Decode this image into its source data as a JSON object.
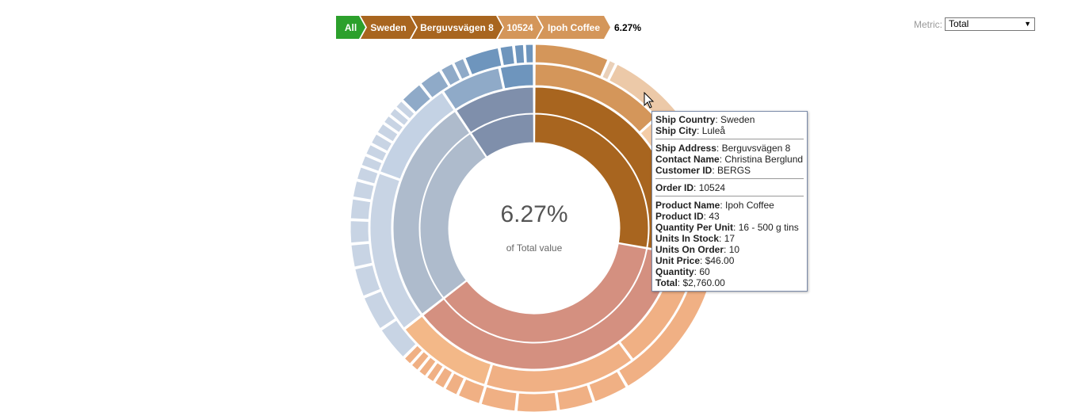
{
  "breadcrumb": {
    "items": [
      {
        "label": "All",
        "color": "#2ca02c"
      },
      {
        "label": "Sweden",
        "color": "#a8651f"
      },
      {
        "label": "Berguvsvägen 8",
        "color": "#a8651f"
      },
      {
        "label": "10524",
        "color": "#d4965a"
      },
      {
        "label": "Ipoh Coffee",
        "color": "#d4965a"
      }
    ],
    "percentage": "6.27%"
  },
  "metric": {
    "label": "Metric:",
    "selected": "Total"
  },
  "center": {
    "percentage": "6.27%",
    "caption": "of Total value"
  },
  "tooltip": {
    "groups": [
      [
        {
          "key": "Ship Country",
          "value": "Sweden"
        },
        {
          "key": "Ship City",
          "value": "Luleå"
        }
      ],
      [
        {
          "key": "Ship Address",
          "value": "Berguvsvägen 8"
        },
        {
          "key": "Contact Name",
          "value": "Christina Berglund"
        },
        {
          "key": "Customer ID",
          "value": "BERGS"
        }
      ],
      [
        {
          "key": "Order ID",
          "value": "10524"
        }
      ],
      [
        {
          "key": "Product Name",
          "value": "Ipoh Coffee"
        },
        {
          "key": "Product ID",
          "value": "43"
        },
        {
          "key": "Quantity Per Unit",
          "value": "16 - 500 g tins"
        },
        {
          "key": "Units In Stock",
          "value": "17"
        },
        {
          "key": "Units On Order",
          "value": "10"
        },
        {
          "key": "Unit Price",
          "value": "$46.00"
        },
        {
          "key": "Quantity",
          "value": "60"
        },
        {
          "key": "Total",
          "value": "$2,760.00"
        }
      ]
    ]
  },
  "chart_data": {
    "type": "sunburst",
    "highlighted_share_percent": 6.27,
    "levels": [
      "Ship Country",
      "Ship Address",
      "Order ID",
      "Product Name"
    ],
    "rings": [
      {
        "level": "Ship Country",
        "segments": [
          {
            "share": 0.278,
            "color": "#a8651f"
          },
          {
            "share": 0.367,
            "color": "#d49080"
          },
          {
            "share": 0.261,
            "color": "#aebbcc"
          },
          {
            "share": 0.094,
            "color": "#7f8fab"
          }
        ]
      },
      {
        "level": "Ship Address",
        "segments": [
          {
            "share": 0.278,
            "color": "#a8651f"
          },
          {
            "share": 0.367,
            "color": "#d49080"
          },
          {
            "share": 0.261,
            "color": "#aebbcc"
          },
          {
            "share": 0.094,
            "color": "#7f8fab"
          }
        ]
      },
      {
        "level": "Order ID",
        "segments": [
          {
            "share": 0.133,
            "color": "#d4965a"
          },
          {
            "share": 0.145,
            "color": "#f4cca6"
          },
          {
            "share": 0.12,
            "color": "#f0b084"
          },
          {
            "share": 0.15,
            "color": "#f0b084"
          },
          {
            "share": 0.097,
            "color": "#f3b888"
          },
          {
            "share": 0.16,
            "color": "#c8d4e4"
          },
          {
            "share": 0.101,
            "color": "#c4d2e4"
          },
          {
            "share": 0.06,
            "color": "#8faac8"
          },
          {
            "share": 0.034,
            "color": "#6e95bd"
          }
        ]
      },
      {
        "level": "Product Name",
        "segments": [
          {
            "share": 0.063,
            "color": "#d4965a"
          },
          {
            "share": 0.007,
            "color": "#ead0b8"
          },
          {
            "share": 0.068,
            "color": "#ecc9a8"
          },
          {
            "share": 0.02,
            "color": "#f4cca6"
          },
          {
            "share": 0.016,
            "color": "#f6d4b4"
          },
          {
            "share": 0.014,
            "color": "#f6d4b4"
          },
          {
            "share": 0.012,
            "color": "#f6d4b4"
          },
          {
            "share": 0.015,
            "color": "#f6d4b4"
          },
          {
            "share": 0.013,
            "color": "#f6d4b4"
          },
          {
            "share": 0.011,
            "color": "#f6d4b4"
          },
          {
            "share": 0.01,
            "color": "#f6d4b4"
          },
          {
            "share": 0.03,
            "color": "#f4cca6"
          },
          {
            "share": 0.115,
            "color": "#f0b084"
          },
          {
            "share": 0.03,
            "color": "#f0b084"
          },
          {
            "share": 0.03,
            "color": "#f0b084"
          },
          {
            "share": 0.035,
            "color": "#f0b084"
          },
          {
            "share": 0.03,
            "color": "#f0b084"
          },
          {
            "share": 0.02,
            "color": "#f0b084"
          },
          {
            "share": 0.012,
            "color": "#f0b084"
          },
          {
            "share": 0.01,
            "color": "#f0b084"
          },
          {
            "share": 0.008,
            "color": "#f0b084"
          },
          {
            "share": 0.008,
            "color": "#f0b084"
          },
          {
            "share": 0.008,
            "color": "#f0b084"
          },
          {
            "share": 0.008,
            "color": "#f0b084"
          },
          {
            "share": 0.03,
            "color": "#c8d4e4"
          },
          {
            "share": 0.03,
            "color": "#c8d4e4"
          },
          {
            "share": 0.025,
            "color": "#c8d4e4"
          },
          {
            "share": 0.02,
            "color": "#c8d4e4"
          },
          {
            "share": 0.02,
            "color": "#c8d4e4"
          },
          {
            "share": 0.018,
            "color": "#c8d4e4"
          },
          {
            "share": 0.015,
            "color": "#c8d4e4"
          },
          {
            "share": 0.012,
            "color": "#c8d4e4"
          },
          {
            "share": 0.01,
            "color": "#c8d4e4"
          },
          {
            "share": 0.01,
            "color": "#c8d4e4"
          },
          {
            "share": 0.01,
            "color": "#c8d4e4"
          },
          {
            "share": 0.01,
            "color": "#c8d4e4"
          },
          {
            "share": 0.008,
            "color": "#c8d4e4"
          },
          {
            "share": 0.008,
            "color": "#c8d4e4"
          },
          {
            "share": 0.008,
            "color": "#c8d4e4"
          },
          {
            "share": 0.02,
            "color": "#8faac8"
          },
          {
            "share": 0.02,
            "color": "#8faac8"
          },
          {
            "share": 0.012,
            "color": "#8faac8"
          },
          {
            "share": 0.01,
            "color": "#8faac8"
          },
          {
            "share": 0.03,
            "color": "#6e95bd"
          },
          {
            "share": 0.012,
            "color": "#6e95bd"
          },
          {
            "share": 0.009,
            "color": "#6e95bd"
          },
          {
            "share": 0.008,
            "color": "#6e95bd"
          }
        ]
      }
    ]
  }
}
